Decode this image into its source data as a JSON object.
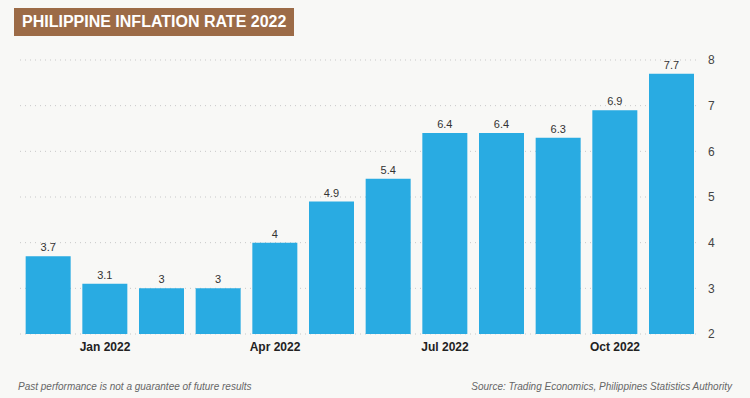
{
  "chart_data": {
    "type": "bar",
    "title": "PHILIPPINE INFLATION RATE 2022",
    "categories": [
      null,
      "Jan 2022",
      null,
      null,
      "Apr 2022",
      null,
      null,
      "Jul 2022",
      null,
      null,
      "Oct 2022",
      null
    ],
    "values": [
      3.7,
      3.1,
      3.0,
      3.0,
      4.0,
      4.9,
      5.4,
      6.4,
      6.4,
      6.3,
      6.9,
      7.7
    ],
    "color": "#29ABE2",
    "ylim": [
      2,
      8
    ],
    "yticks": [
      2,
      3,
      4,
      5,
      6,
      7,
      8
    ],
    "grid": true,
    "data_labels": true,
    "annotations": [
      "Past performance is not a guarantee of future results",
      "Source: Trading Economics, Philippines Statistics Authority"
    ]
  }
}
